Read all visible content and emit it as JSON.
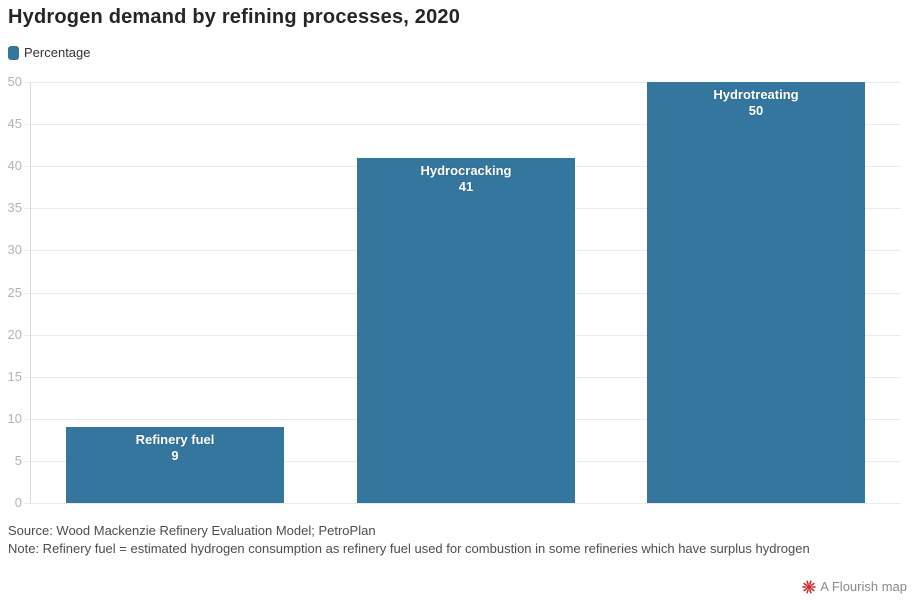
{
  "header": {
    "title": "Hydrogen demand by refining processes, 2020"
  },
  "legend": {
    "label": "Percentage"
  },
  "chart_data": {
    "type": "bar",
    "title": "Hydrogen demand by refining processes, 2020",
    "categories": [
      "Refinery fuel",
      "Hydrocracking",
      "Hydrotreating"
    ],
    "values": [
      9,
      41,
      50
    ],
    "series_name": "Percentage",
    "xlabel": "",
    "ylabel": "",
    "ylim": [
      0,
      50
    ],
    "ytick_step": 5,
    "grid": true,
    "legend_position": "top-left",
    "bar_labels_inside": true
  },
  "footer": {
    "source": "Source: Wood Mackenzie Refinery Evaluation Model; PetroPlan",
    "note": "Note: Refinery fuel = estimated hydrogen consumption as refinery fuel used for combustion in some refineries which have surplus hydrogen",
    "attribution": "A Flourish map"
  },
  "colors": {
    "bar": "#35769E",
    "grid": "#ebebee",
    "axis": "#dcdce0",
    "tick_label": "#b4b4b9",
    "title": "#262626",
    "footer_text": "#4d4d4d",
    "attribution_text": "#8a8a8a",
    "flourish_red": "#d12b2b"
  }
}
